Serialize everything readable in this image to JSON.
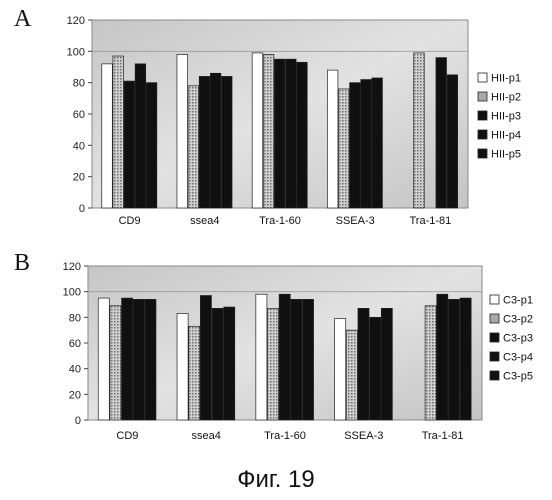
{
  "figure_caption": "Фиг. 19",
  "colors": {
    "p1": "#ffffff",
    "p2": "#a8a8a8",
    "p3": "#101010",
    "p4": "#101010",
    "p5": "#101010",
    "plot_bg": "#d2d2d2",
    "frame": "#8a8a8a"
  },
  "chart_data": [
    {
      "type": "bar",
      "panel_label": "A",
      "categories": [
        "CD9",
        "ssea4",
        "Tra-1-60",
        "SSEA-3",
        "Tra-1-81"
      ],
      "ylim": [
        0,
        120
      ],
      "yticks": [
        0,
        20,
        40,
        60,
        80,
        100,
        120
      ],
      "ytick_labels": [
        "0",
        "20",
        "40",
        "60",
        "80",
        "100",
        "120"
      ],
      "grid": false,
      "legend_position": "right",
      "series": [
        {
          "name": "HII-p1",
          "values": [
            92,
            98,
            99,
            88,
            0
          ]
        },
        {
          "name": "HII-p2",
          "values": [
            97,
            78,
            98,
            76,
            99
          ]
        },
        {
          "name": "HII-p3",
          "values": [
            81,
            84,
            95,
            80,
            0
          ]
        },
        {
          "name": "HII-p4",
          "values": [
            92,
            86,
            95,
            82,
            96
          ]
        },
        {
          "name": "HII-p5",
          "values": [
            80,
            84,
            93,
            83,
            85
          ]
        }
      ]
    },
    {
      "type": "bar",
      "panel_label": "B",
      "categories": [
        "CD9",
        "ssea4",
        "Tra-1-60",
        "SSEA-3",
        "Tra-1-81"
      ],
      "ylim": [
        0,
        120
      ],
      "yticks": [
        0,
        20,
        40,
        60,
        80,
        100,
        120
      ],
      "ytick_labels": [
        "0",
        "20",
        "40",
        "60",
        "80",
        "100",
        "120"
      ],
      "grid": false,
      "legend_position": "right",
      "series": [
        {
          "name": "C3-p1",
          "values": [
            95,
            83,
            98,
            79,
            0
          ]
        },
        {
          "name": "C3-p2",
          "values": [
            89,
            73,
            87,
            70,
            89
          ]
        },
        {
          "name": "C3-p3",
          "values": [
            95,
            97,
            98,
            87,
            98
          ]
        },
        {
          "name": "C3-p4",
          "values": [
            94,
            87,
            94,
            80,
            94
          ]
        },
        {
          "name": "C3-p5",
          "values": [
            94,
            88,
            94,
            87,
            95
          ]
        }
      ]
    }
  ]
}
